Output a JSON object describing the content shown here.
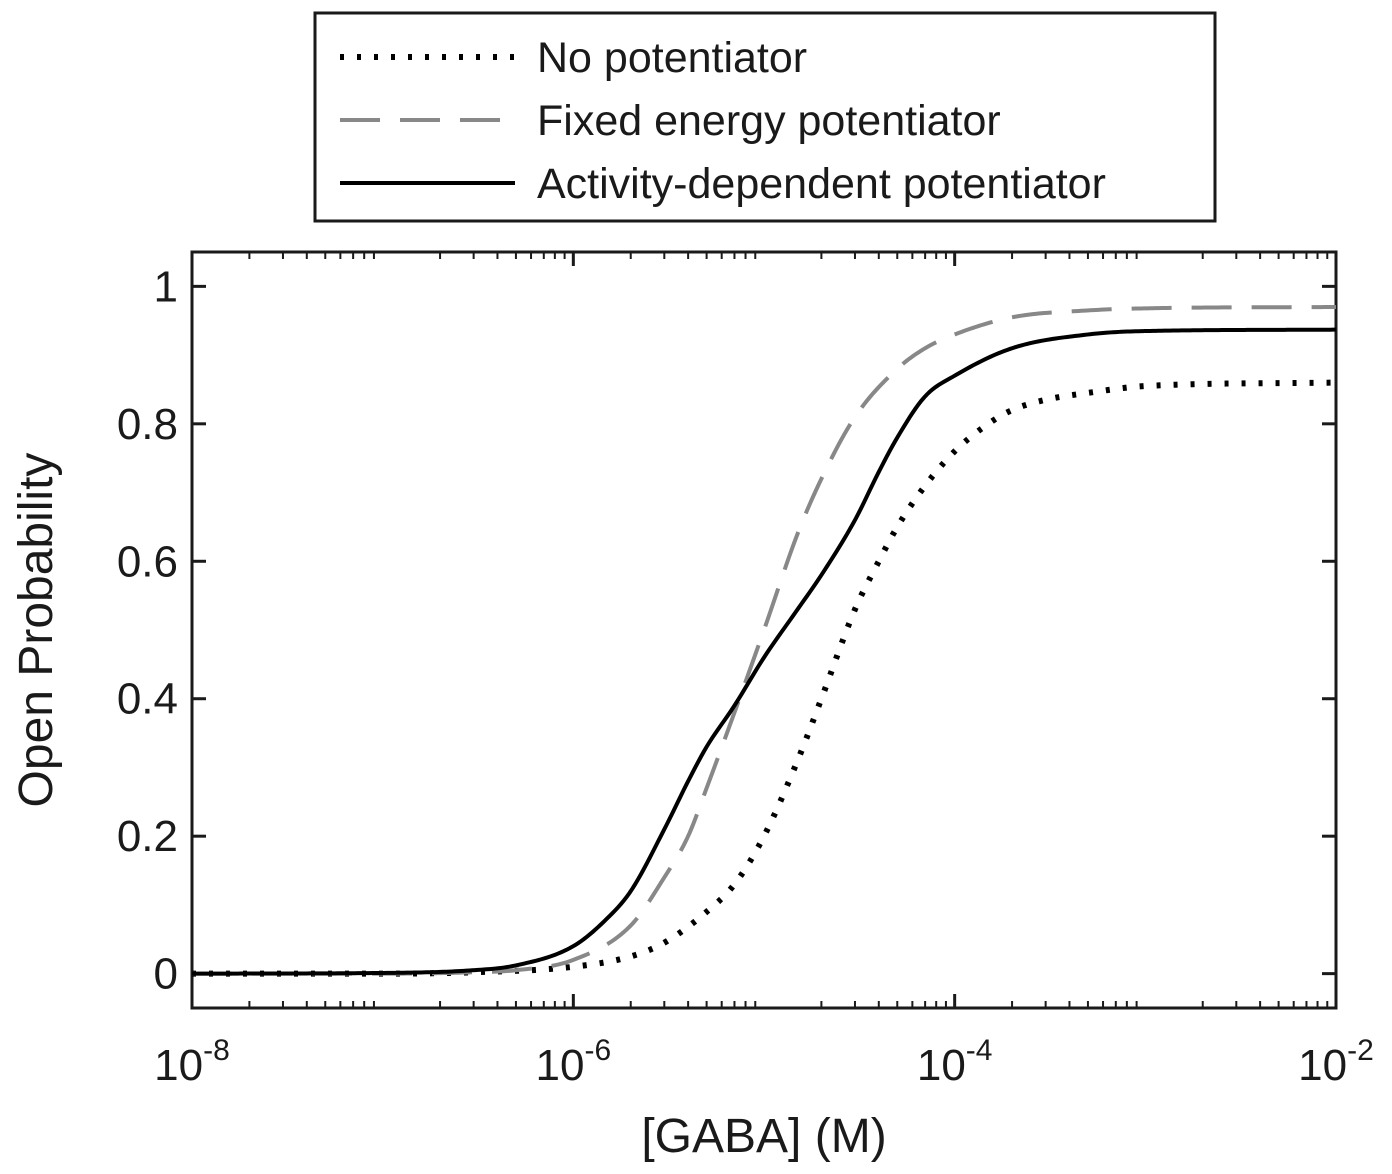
{
  "chart_data": {
    "type": "line",
    "xlabel": "[GABA] (M)",
    "ylabel": "Open Probability",
    "x_scale": "log",
    "xlim": [
      1e-08,
      0.01
    ],
    "ylim": [
      -0.05,
      1.05
    ],
    "x_ticks": [
      {
        "value": 1e-08,
        "base": "10",
        "exp": "-8"
      },
      {
        "value": 1e-06,
        "base": "10",
        "exp": "-6"
      },
      {
        "value": 0.0001,
        "base": "10",
        "exp": "-4"
      },
      {
        "value": 0.01,
        "base": "10",
        "exp": "-2"
      }
    ],
    "y_ticks": [
      {
        "value": 0,
        "label": "0"
      },
      {
        "value": 0.2,
        "label": "0.2"
      },
      {
        "value": 0.4,
        "label": "0.4"
      },
      {
        "value": 0.6,
        "label": "0.6"
      },
      {
        "value": 0.8,
        "label": "0.8"
      },
      {
        "value": 1,
        "label": "1"
      }
    ],
    "grid": false,
    "legend_position": "top",
    "series": [
      {
        "name": "No potentiator",
        "style": "dotted",
        "color": "#000000",
        "x": [
          1e-08,
          1e-07,
          3e-07,
          1e-06,
          2e-06,
          3e-06,
          5e-06,
          7e-06,
          1e-05,
          1.5e-05,
          2e-05,
          3e-05,
          4e-05,
          5e-05,
          7e-05,
          0.0001,
          0.00015,
          0.0002,
          0.0003,
          0.0005,
          0.001,
          0.01
        ],
        "y": [
          0,
          0,
          0.002,
          0.01,
          0.025,
          0.045,
          0.09,
          0.13,
          0.2,
          0.31,
          0.4,
          0.53,
          0.6,
          0.65,
          0.71,
          0.76,
          0.8,
          0.82,
          0.835,
          0.845,
          0.855,
          0.86
        ]
      },
      {
        "name": "Fixed energy potentiator",
        "style": "dashed",
        "color": "#888888",
        "x": [
          1e-08,
          1e-07,
          3e-07,
          5e-07,
          1e-06,
          2e-06,
          3e-06,
          4e-06,
          5e-06,
          7e-06,
          1e-05,
          1.5e-05,
          2e-05,
          3e-05,
          5e-05,
          7e-05,
          0.0001,
          0.0002,
          0.0005,
          0.001,
          0.01
        ],
        "y": [
          0,
          0,
          0.002,
          0.005,
          0.02,
          0.07,
          0.14,
          0.2,
          0.27,
          0.38,
          0.5,
          0.64,
          0.72,
          0.81,
          0.88,
          0.91,
          0.93,
          0.955,
          0.965,
          0.968,
          0.97
        ]
      },
      {
        "name": "Activity-dependent potentiator",
        "style": "solid",
        "color": "#000000",
        "x": [
          1e-08,
          1e-07,
          3e-07,
          5e-07,
          1e-06,
          1.5e-06,
          2e-06,
          3e-06,
          4e-06,
          5e-06,
          7e-06,
          1e-05,
          1.5e-05,
          2e-05,
          3e-05,
          4e-05,
          5e-05,
          7e-05,
          0.0001,
          0.0002,
          0.0005,
          0.001,
          0.01
        ],
        "y": [
          0,
          0.001,
          0.005,
          0.012,
          0.04,
          0.08,
          0.12,
          0.21,
          0.28,
          0.33,
          0.39,
          0.46,
          0.53,
          0.58,
          0.66,
          0.73,
          0.78,
          0.84,
          0.87,
          0.91,
          0.93,
          0.935,
          0.937
        ]
      }
    ]
  }
}
